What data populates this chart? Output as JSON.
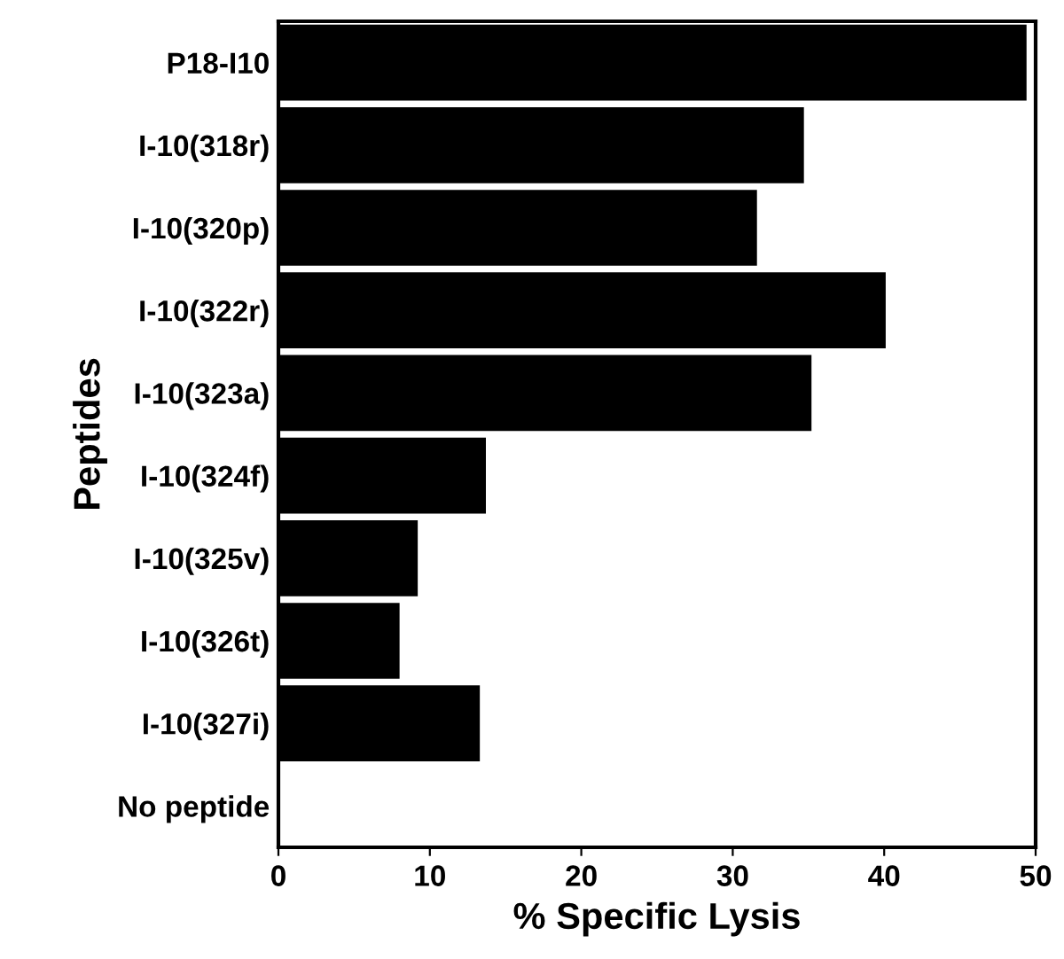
{
  "chart_data": {
    "type": "bar",
    "orientation": "horizontal",
    "xlabel": "% Specific Lysis",
    "ylabel": "Peptides",
    "categories": [
      "P18-I10",
      "I-10(318r)",
      "I-10(320p)",
      "I-10(322r)",
      "I-10(323a)",
      "I-10(324f)",
      "I-10(325v)",
      "I-10(326t)",
      "I-10(327i)",
      "No peptide"
    ],
    "values": [
      49.4,
      34.7,
      31.6,
      40.1,
      35.2,
      13.7,
      9.2,
      8.0,
      13.3,
      0
    ],
    "color": "#000000",
    "xlim": [
      0,
      50
    ],
    "xticks": [
      0,
      10,
      20,
      30,
      40,
      50
    ],
    "grid": false,
    "legend": false
  }
}
